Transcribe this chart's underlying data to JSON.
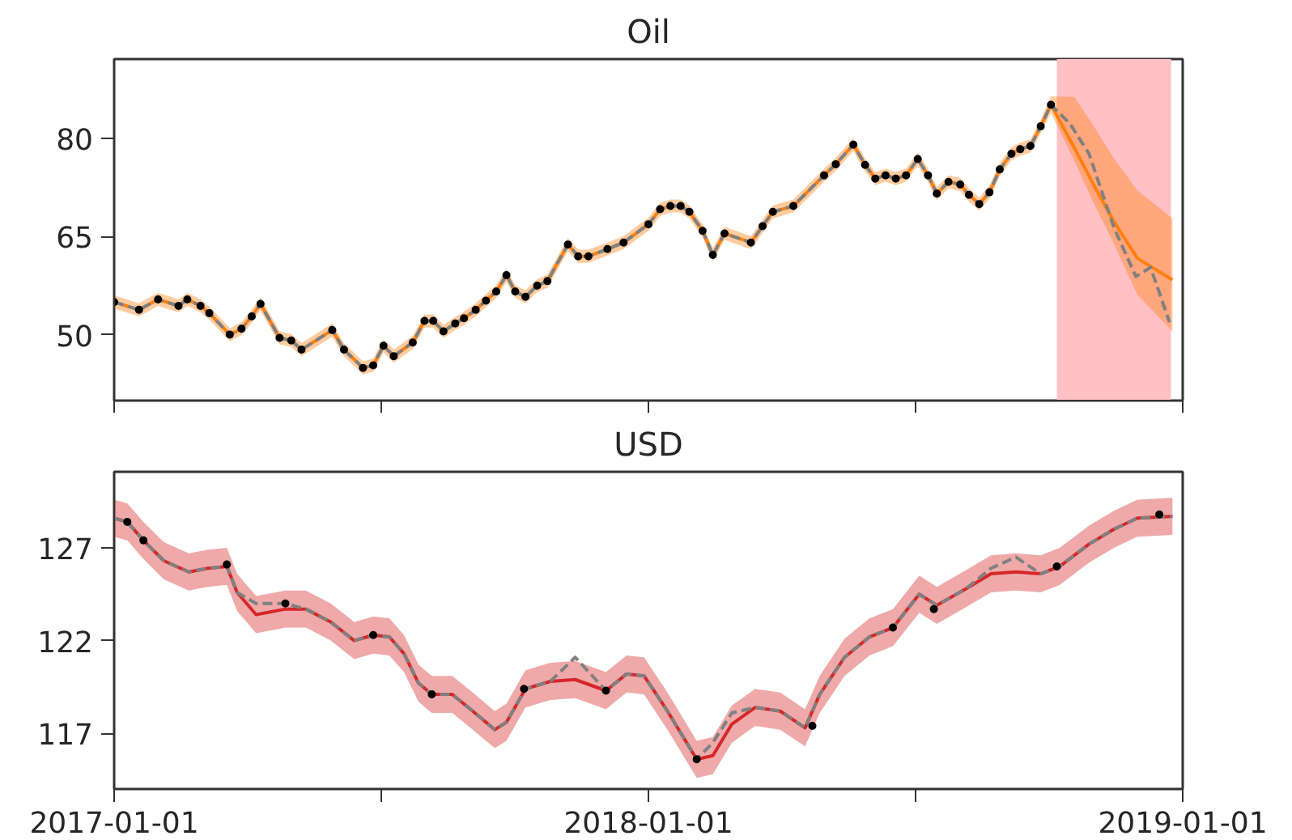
{
  "chart_data": [
    {
      "type": "line",
      "title": "Oil",
      "tick_labels": "y",
      "grid": false,
      "xlim": [
        "2017-01-01",
        "2019-01-01"
      ],
      "xticks": [
        {
          "value": "2017-01-01",
          "label": null
        },
        {
          "value": "2017-07-02",
          "label": null
        },
        {
          "value": "2018-01-01",
          "label": null
        },
        {
          "value": "2018-07-02",
          "label": null
        },
        {
          "value": "2019-01-01",
          "label": null
        }
      ],
      "ylim": [
        39.9,
        92.2
      ],
      "yticks": [
        50,
        65,
        80
      ],
      "bands": [
        {
          "axis": "x",
          "from": "2018-10-07",
          "to": "2018-12-24",
          "color": "#ffc0c5"
        }
      ],
      "series": [
        {
          "type": "line",
          "color": "#ff7f0e",
          "x": [
            "2017-01-01",
            "2017-01-18",
            "2017-01-31",
            "2017-02-14",
            "2017-02-20",
            "2017-03-01",
            "2017-03-07",
            "2017-03-21",
            "2017-03-29",
            "2017-04-05",
            "2017-04-11",
            "2017-04-24",
            "2017-05-02",
            "2017-05-09",
            "2017-05-30",
            "2017-06-07",
            "2017-06-20",
            "2017-06-27",
            "2017-07-04",
            "2017-07-11",
            "2017-07-24",
            "2017-08-01",
            "2017-08-07",
            "2017-08-14",
            "2017-08-22",
            "2017-08-28",
            "2017-09-05",
            "2017-09-12",
            "2017-09-19",
            "2017-09-26",
            "2017-10-02",
            "2017-10-09",
            "2017-10-17",
            "2017-10-24",
            "2017-11-07",
            "2017-11-14",
            "2017-11-21",
            "2017-12-04",
            "2017-12-15",
            "2018-01-01",
            "2018-01-09",
            "2018-01-16",
            "2018-01-23",
            "2018-01-29",
            "2018-02-07",
            "2018-02-14",
            "2018-02-22",
            "2018-03-12",
            "2018-03-20",
            "2018-03-27",
            "2018-04-10",
            "2018-05-01",
            "2018-05-09",
            "2018-05-21",
            "2018-05-29",
            "2018-06-05",
            "2018-06-12",
            "2018-06-19",
            "2018-06-26",
            "2018-07-04",
            "2018-07-11",
            "2018-07-17",
            "2018-07-25",
            "2018-08-02",
            "2018-08-08",
            "2018-08-15",
            "2018-08-22",
            "2018-08-29",
            "2018-09-06",
            "2018-09-12",
            "2018-09-19",
            "2018-09-26",
            "2018-10-03",
            "2018-10-19",
            "2018-11-01",
            "2018-11-15",
            "2018-12-01",
            "2018-12-25"
          ],
          "values": [
            55.0,
            53.8,
            55.4,
            54.4,
            55.4,
            54.4,
            53.3,
            50.0,
            50.9,
            52.8,
            54.7,
            49.5,
            49.1,
            47.7,
            50.7,
            47.7,
            44.9,
            45.3,
            48.3,
            46.7,
            48.8,
            52.1,
            52.1,
            50.5,
            51.7,
            52.5,
            53.8,
            55.2,
            56.6,
            59.1,
            56.6,
            55.8,
            57.5,
            58.2,
            63.8,
            62.0,
            62.0,
            63.1,
            64.1,
            66.9,
            69.2,
            69.7,
            69.7,
            68.8,
            65.9,
            62.2,
            65.5,
            64.1,
            66.6,
            68.8,
            69.7,
            74.4,
            76.1,
            79.1,
            76.0,
            73.9,
            74.4,
            73.9,
            74.4,
            76.9,
            74.4,
            71.6,
            73.4,
            73.0,
            71.4,
            70.0,
            71.8,
            75.3,
            77.7,
            78.4,
            78.9,
            81.9,
            85.2,
            78.6,
            73.0,
            67.3,
            61.7,
            58.4
          ],
          "lower": [
            54.0,
            52.8,
            54.4,
            53.4,
            54.4,
            53.4,
            52.3,
            49.0,
            49.9,
            51.8,
            53.7,
            48.5,
            48.1,
            46.7,
            49.7,
            46.7,
            43.9,
            44.3,
            47.3,
            45.7,
            47.8,
            51.1,
            51.1,
            49.5,
            50.7,
            51.5,
            52.8,
            54.2,
            55.6,
            58.1,
            55.6,
            54.8,
            56.5,
            57.2,
            62.8,
            61.0,
            61.0,
            62.1,
            63.1,
            65.9,
            68.2,
            68.7,
            68.7,
            67.8,
            64.9,
            61.2,
            64.5,
            63.1,
            65.6,
            67.8,
            68.7,
            73.4,
            75.1,
            78.1,
            75.0,
            72.9,
            73.4,
            72.9,
            73.4,
            75.9,
            73.4,
            70.6,
            72.4,
            72.0,
            70.4,
            69.0,
            70.8,
            74.3,
            76.7,
            77.4,
            77.9,
            80.9,
            84.0,
            76.6,
            70.2,
            63.9,
            56.1,
            50.5
          ],
          "upper": [
            56.0,
            54.8,
            56.4,
            55.4,
            56.4,
            55.4,
            54.3,
            51.0,
            51.9,
            53.8,
            55.7,
            50.5,
            50.1,
            48.7,
            51.7,
            48.7,
            45.9,
            46.3,
            49.3,
            47.7,
            49.8,
            53.1,
            53.1,
            51.5,
            52.7,
            53.5,
            54.8,
            56.2,
            57.6,
            60.1,
            57.6,
            56.8,
            58.5,
            59.2,
            64.8,
            63.0,
            63.0,
            64.1,
            65.1,
            67.9,
            70.2,
            70.7,
            70.7,
            69.8,
            66.9,
            63.2,
            66.5,
            65.1,
            67.6,
            69.8,
            70.7,
            75.4,
            77.1,
            80.1,
            77.0,
            74.9,
            75.4,
            74.9,
            75.4,
            77.9,
            75.4,
            72.6,
            74.4,
            74.0,
            72.4,
            71.0,
            72.8,
            76.3,
            78.7,
            79.4,
            79.9,
            82.9,
            86.5,
            86.4,
            82.0,
            77.0,
            72.1,
            67.8
          ]
        },
        {
          "type": "line",
          "color": "#808080",
          "line_style": "dashed",
          "x": [
            "2017-01-01",
            "2017-01-18",
            "2017-01-31",
            "2017-02-14",
            "2017-02-20",
            "2017-03-01",
            "2017-03-07",
            "2017-03-21",
            "2017-03-29",
            "2017-04-05",
            "2017-04-11",
            "2017-04-24",
            "2017-05-02",
            "2017-05-09",
            "2017-05-30",
            "2017-06-07",
            "2017-06-20",
            "2017-06-27",
            "2017-07-04",
            "2017-07-11",
            "2017-07-24",
            "2017-08-01",
            "2017-08-07",
            "2017-08-14",
            "2017-08-22",
            "2017-08-28",
            "2017-09-05",
            "2017-09-12",
            "2017-09-19",
            "2017-09-26",
            "2017-10-02",
            "2017-10-09",
            "2017-10-17",
            "2017-10-24",
            "2017-11-07",
            "2017-11-14",
            "2017-11-21",
            "2017-12-04",
            "2017-12-15",
            "2018-01-01",
            "2018-01-09",
            "2018-01-16",
            "2018-01-23",
            "2018-01-29",
            "2018-02-07",
            "2018-02-14",
            "2018-02-22",
            "2018-03-12",
            "2018-03-20",
            "2018-03-27",
            "2018-04-10",
            "2018-05-01",
            "2018-05-09",
            "2018-05-21",
            "2018-05-29",
            "2018-06-05",
            "2018-06-12",
            "2018-06-19",
            "2018-06-26",
            "2018-07-04",
            "2018-07-11",
            "2018-07-17",
            "2018-07-25",
            "2018-08-02",
            "2018-08-08",
            "2018-08-15",
            "2018-08-22",
            "2018-08-29",
            "2018-09-06",
            "2018-09-12",
            "2018-09-19",
            "2018-09-26",
            "2018-10-03",
            "2018-10-16",
            "2018-10-29",
            "2018-11-15",
            "2018-11-30",
            "2018-12-10",
            "2018-12-23"
          ],
          "values": [
            55.0,
            53.8,
            55.4,
            54.4,
            55.4,
            54.4,
            53.3,
            50.0,
            50.9,
            52.8,
            54.7,
            49.5,
            49.1,
            47.7,
            50.7,
            47.7,
            44.9,
            45.3,
            48.3,
            46.7,
            48.8,
            52.1,
            52.1,
            50.5,
            51.7,
            52.5,
            53.8,
            55.2,
            56.6,
            59.1,
            56.6,
            55.8,
            57.5,
            58.2,
            63.8,
            62.0,
            62.0,
            63.1,
            64.1,
            66.9,
            69.2,
            69.7,
            69.7,
            68.8,
            65.9,
            62.2,
            65.5,
            64.1,
            66.6,
            68.8,
            69.7,
            74.4,
            76.1,
            79.1,
            76.0,
            73.9,
            74.4,
            73.9,
            74.4,
            76.9,
            74.4,
            71.6,
            73.4,
            73.0,
            71.4,
            70.0,
            71.8,
            75.3,
            77.7,
            78.4,
            78.9,
            81.9,
            85.2,
            82.3,
            77.7,
            66.4,
            58.9,
            60.3,
            51.9
          ]
        },
        {
          "type": "scatter",
          "color": "#000000",
          "marker": "circle",
          "x": [
            "2017-01-01",
            "2017-01-18",
            "2017-01-31",
            "2017-02-14",
            "2017-02-20",
            "2017-03-01",
            "2017-03-07",
            "2017-03-21",
            "2017-03-29",
            "2017-04-05",
            "2017-04-11",
            "2017-04-24",
            "2017-05-02",
            "2017-05-09",
            "2017-05-30",
            "2017-06-07",
            "2017-06-20",
            "2017-06-27",
            "2017-07-04",
            "2017-07-11",
            "2017-07-24",
            "2017-08-01",
            "2017-08-07",
            "2017-08-14",
            "2017-08-22",
            "2017-08-28",
            "2017-09-05",
            "2017-09-12",
            "2017-09-19",
            "2017-09-26",
            "2017-10-02",
            "2017-10-09",
            "2017-10-17",
            "2017-10-24",
            "2017-11-07",
            "2017-11-14",
            "2017-11-21",
            "2017-12-04",
            "2017-12-15",
            "2018-01-01",
            "2018-01-09",
            "2018-01-16",
            "2018-01-23",
            "2018-01-29",
            "2018-02-07",
            "2018-02-14",
            "2018-02-22",
            "2018-03-12",
            "2018-03-20",
            "2018-03-27",
            "2018-04-10",
            "2018-05-01",
            "2018-05-09",
            "2018-05-21",
            "2018-05-29",
            "2018-06-05",
            "2018-06-12",
            "2018-06-19",
            "2018-06-26",
            "2018-07-04",
            "2018-07-11",
            "2018-07-17",
            "2018-07-25",
            "2018-08-02",
            "2018-08-08",
            "2018-08-15",
            "2018-08-22",
            "2018-08-29",
            "2018-09-06",
            "2018-09-12",
            "2018-09-19",
            "2018-09-26",
            "2018-10-03"
          ],
          "values": [
            55.0,
            53.8,
            55.4,
            54.4,
            55.4,
            54.4,
            53.3,
            50.0,
            50.9,
            52.8,
            54.7,
            49.5,
            49.1,
            47.7,
            50.7,
            47.7,
            44.9,
            45.3,
            48.3,
            46.7,
            48.8,
            52.1,
            52.1,
            50.5,
            51.7,
            52.5,
            53.8,
            55.2,
            56.6,
            59.1,
            56.6,
            55.8,
            57.5,
            58.2,
            63.8,
            62.0,
            62.0,
            63.1,
            64.1,
            66.9,
            69.2,
            69.7,
            69.7,
            68.8,
            65.9,
            62.2,
            65.5,
            64.1,
            66.6,
            68.8,
            69.7,
            74.4,
            76.1,
            79.1,
            76.0,
            73.9,
            74.4,
            73.9,
            74.4,
            76.9,
            74.4,
            71.6,
            73.4,
            73.0,
            71.4,
            70.0,
            71.8,
            75.3,
            77.7,
            78.4,
            78.9,
            81.9,
            85.2
          ]
        }
      ]
    },
    {
      "type": "line",
      "title": "USD",
      "grid": false,
      "xlim": [
        "2017-01-01",
        "2019-01-01"
      ],
      "xticks": [
        {
          "value": "2017-01-01",
          "label": "2017-01-01"
        },
        {
          "value": "2017-07-02",
          "label": null
        },
        {
          "value": "2018-01-01",
          "label": "2018-01-01"
        },
        {
          "value": "2018-07-02",
          "label": null
        },
        {
          "value": "2019-01-01",
          "label": "2019-01-01"
        }
      ],
      "ylim": [
        114.0,
        131.1
      ],
      "yticks": [
        117,
        122,
        127
      ],
      "series": [
        {
          "type": "line",
          "color": "#d62728",
          "x": [
            "2017-01-01",
            "2017-01-10",
            "2017-01-21",
            "2017-02-04",
            "2017-02-21",
            "2017-03-06",
            "2017-03-19",
            "2017-03-26",
            "2017-04-08",
            "2017-04-28",
            "2017-05-12",
            "2017-05-29",
            "2017-06-14",
            "2017-06-27",
            "2017-07-08",
            "2017-07-18",
            "2017-07-28",
            "2017-08-06",
            "2017-08-20",
            "2017-09-03",
            "2017-09-18",
            "2017-09-26",
            "2017-10-09",
            "2017-10-26",
            "2017-11-12",
            "2017-12-03",
            "2017-12-17",
            "2017-12-29",
            "2018-01-14",
            "2018-02-03",
            "2018-02-14",
            "2018-02-27",
            "2018-03-15",
            "2018-04-01",
            "2018-04-18",
            "2018-04-28",
            "2018-05-15",
            "2018-06-01",
            "2018-06-17",
            "2018-07-05",
            "2018-07-17",
            "2018-08-06",
            "2018-08-23",
            "2018-09-09",
            "2018-09-26",
            "2018-10-09",
            "2018-10-29",
            "2018-11-15",
            "2018-12-01",
            "2018-12-25"
          ],
          "values": [
            128.6,
            128.4,
            127.4,
            126.3,
            125.7,
            125.9,
            126.0,
            124.6,
            123.4,
            123.7,
            123.7,
            123.0,
            122.0,
            122.3,
            122.2,
            121.3,
            119.7,
            119.1,
            119.1,
            118.2,
            117.2,
            117.6,
            119.4,
            119.8,
            119.9,
            119.3,
            120.2,
            120.1,
            118.2,
            115.6,
            115.8,
            117.5,
            118.4,
            118.2,
            117.3,
            119.1,
            121.1,
            122.2,
            122.7,
            124.5,
            123.9,
            124.8,
            125.6,
            125.7,
            125.6,
            126.0,
            127.2,
            128.0,
            128.6,
            128.7
          ],
          "lower": [
            127.6,
            127.4,
            126.4,
            125.3,
            124.7,
            124.9,
            125.0,
            123.6,
            122.4,
            122.7,
            122.7,
            122.0,
            121.0,
            121.3,
            121.2,
            120.3,
            118.7,
            118.1,
            118.1,
            117.2,
            116.2,
            116.6,
            118.4,
            118.8,
            118.9,
            118.3,
            119.2,
            119.1,
            117.2,
            114.6,
            114.8,
            116.5,
            117.4,
            117.2,
            116.3,
            118.1,
            120.1,
            121.2,
            121.7,
            123.5,
            122.9,
            123.8,
            124.6,
            124.7,
            124.6,
            125.0,
            126.2,
            127.0,
            127.6,
            127.7
          ],
          "upper": [
            129.6,
            129.4,
            128.4,
            127.3,
            126.7,
            126.9,
            127.0,
            125.6,
            124.4,
            124.7,
            124.7,
            124.0,
            123.0,
            123.3,
            123.2,
            122.3,
            120.7,
            120.1,
            120.1,
            119.2,
            118.2,
            118.6,
            120.4,
            120.8,
            120.9,
            120.3,
            121.2,
            121.1,
            119.2,
            116.6,
            116.8,
            118.5,
            119.4,
            119.2,
            118.3,
            120.1,
            122.1,
            123.2,
            123.7,
            125.5,
            124.9,
            125.8,
            126.6,
            126.7,
            126.6,
            127.0,
            128.2,
            129.0,
            129.6,
            129.7
          ]
        },
        {
          "type": "line",
          "color": "#808080",
          "line_style": "dashed",
          "x": [
            "2017-01-01",
            "2017-01-10",
            "2017-01-21",
            "2017-02-04",
            "2017-02-21",
            "2017-03-06",
            "2017-03-19",
            "2017-03-26",
            "2017-04-08",
            "2017-04-28",
            "2017-05-12",
            "2017-05-29",
            "2017-06-14",
            "2017-06-27",
            "2017-07-08",
            "2017-07-18",
            "2017-07-28",
            "2017-08-06",
            "2017-08-20",
            "2017-09-03",
            "2017-09-18",
            "2017-09-26",
            "2017-10-09",
            "2017-10-26",
            "2017-11-12",
            "2017-12-03",
            "2017-12-17",
            "2017-12-29",
            "2018-01-14",
            "2018-02-03",
            "2018-02-14",
            "2018-02-27",
            "2018-03-15",
            "2018-04-01",
            "2018-04-18",
            "2018-04-28",
            "2018-05-15",
            "2018-06-01",
            "2018-06-17",
            "2018-07-05",
            "2018-07-17",
            "2018-08-06",
            "2018-08-23",
            "2018-09-09",
            "2018-09-26",
            "2018-10-09",
            "2018-10-29",
            "2018-11-15",
            "2018-12-01",
            "2018-12-25"
          ],
          "values": [
            128.6,
            128.4,
            127.4,
            126.3,
            125.7,
            125.9,
            126.0,
            124.6,
            124.0,
            124.0,
            123.7,
            123.0,
            122.0,
            122.3,
            122.2,
            121.3,
            119.7,
            119.1,
            119.1,
            118.2,
            117.2,
            117.6,
            119.4,
            119.8,
            121.1,
            119.3,
            120.2,
            120.1,
            118.2,
            115.6,
            116.5,
            118.1,
            118.4,
            118.2,
            117.3,
            119.1,
            121.1,
            122.2,
            122.7,
            124.5,
            123.9,
            124.8,
            125.9,
            126.5,
            125.6,
            126.0,
            127.2,
            128.0,
            128.6,
            128.7
          ]
        },
        {
          "type": "scatter",
          "color": "#000000",
          "marker": "circle",
          "x": [
            "2017-01-10",
            "2017-01-21",
            "2017-03-19",
            "2017-04-28",
            "2017-06-27",
            "2017-08-06",
            "2017-10-08",
            "2017-12-03",
            "2018-02-03",
            "2018-04-23",
            "2018-06-17",
            "2018-07-15",
            "2018-10-07",
            "2018-12-16"
          ],
          "values": [
            128.4,
            127.4,
            126.1,
            124.0,
            122.3,
            119.1,
            119.4,
            119.3,
            115.6,
            117.4,
            122.7,
            123.7,
            126.0,
            128.8
          ]
        }
      ]
    }
  ]
}
